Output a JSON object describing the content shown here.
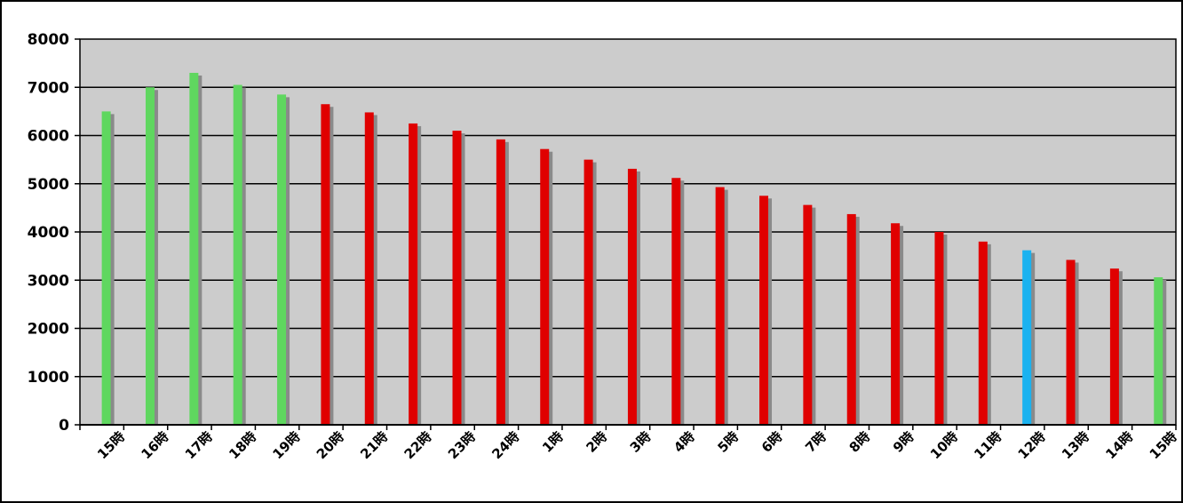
{
  "chart_data": {
    "type": "bar",
    "title": "",
    "xlabel": "",
    "ylabel": "",
    "ylim": [
      0,
      8000
    ],
    "yticks": [
      0,
      1000,
      2000,
      3000,
      4000,
      5000,
      6000,
      7000,
      8000
    ],
    "grid": true,
    "legend": "none",
    "categories": [
      "15時",
      "16時",
      "17時",
      "18時",
      "19時",
      "20時",
      "21時",
      "22時",
      "23時",
      "24時",
      "1時",
      "2時",
      "3時",
      "4時",
      "5時",
      "6時",
      "7時",
      "8時",
      "9時",
      "10時",
      "11時",
      "12時",
      "13時",
      "14時",
      "15時"
    ],
    "values": [
      6500,
      7000,
      7300,
      7050,
      6850,
      6650,
      6480,
      6250,
      6100,
      5920,
      5720,
      5500,
      5310,
      5120,
      4930,
      4750,
      4560,
      4370,
      4180,
      4000,
      3800,
      3620,
      3420,
      3240,
      3060
    ],
    "bar_colors": [
      "#5fd75f",
      "#5fd75f",
      "#5fd75f",
      "#5fd75f",
      "#5fd75f",
      "#e00000",
      "#e00000",
      "#e00000",
      "#e00000",
      "#e00000",
      "#e00000",
      "#e00000",
      "#e00000",
      "#e00000",
      "#e00000",
      "#e00000",
      "#e00000",
      "#e00000",
      "#e00000",
      "#e00000",
      "#e00000",
      "#1ab2f0",
      "#e00000",
      "#e00000",
      "#5fd75f"
    ],
    "colors": {
      "plot_background": "#cccccc",
      "gridline": "#000000",
      "bar_shadow": "#8a8a8a",
      "frame": "#000000"
    }
  }
}
